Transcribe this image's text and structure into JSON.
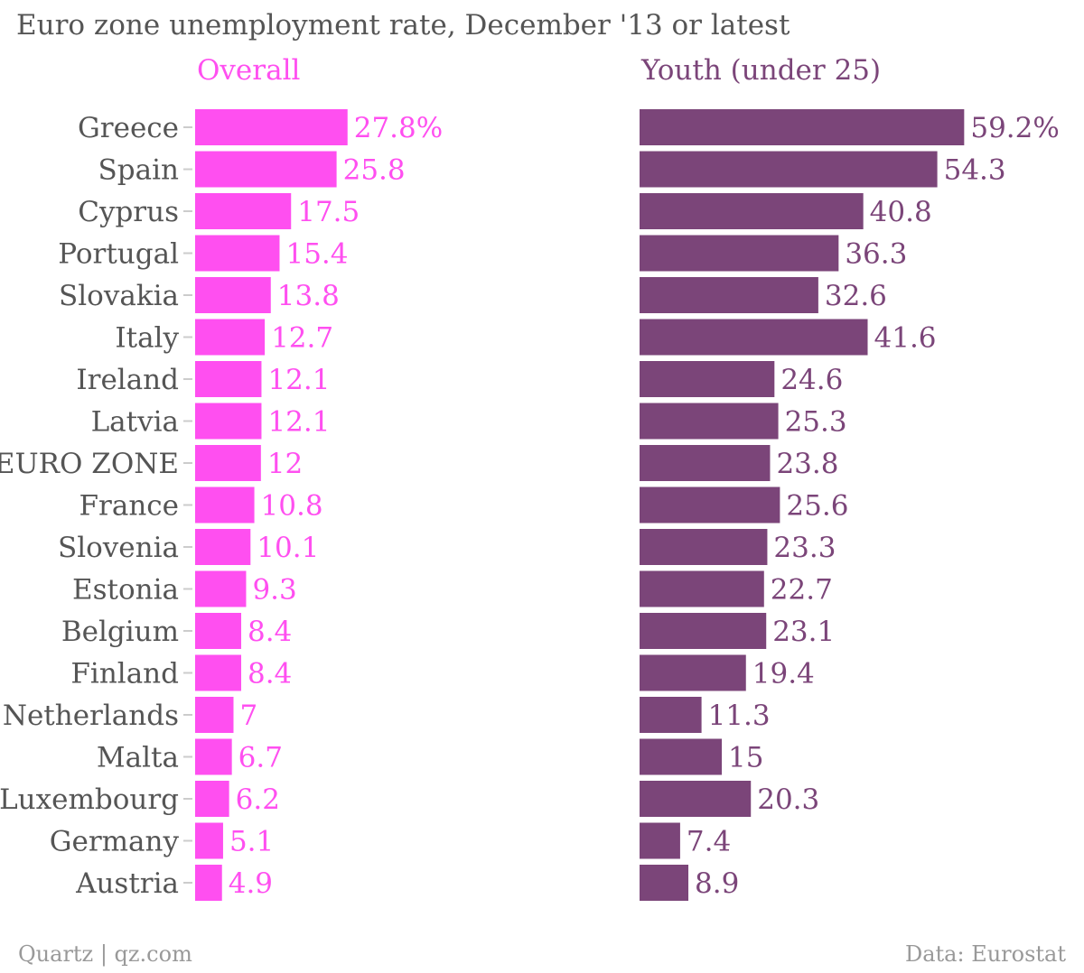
{
  "title": "Euro zone unemployment rate, December '13 or latest",
  "footer": {
    "source_left": "Quartz | qz.com",
    "source_right": "Data: Eurostat"
  },
  "colors": {
    "overall": "#ff4ff0",
    "youth": "#7b4579",
    "label": "#555555",
    "tick": "#cccccc"
  },
  "chart_data": [
    {
      "type": "bar",
      "orientation": "horizontal",
      "title": "Overall",
      "categories": [
        "Greece",
        "Spain",
        "Cyprus",
        "Portugal",
        "Slovakia",
        "Italy",
        "Ireland",
        "Latvia",
        "EURO ZONE",
        "France",
        "Slovenia",
        "Estonia",
        "Belgium",
        "Finland",
        "Netherlands",
        "Malta",
        "Luxembourg",
        "Germany",
        "Austria"
      ],
      "values": [
        27.8,
        25.8,
        17.5,
        15.4,
        13.8,
        12.7,
        12.1,
        12.1,
        12,
        10.8,
        10.1,
        9.3,
        8.4,
        8.4,
        7,
        6.7,
        6.2,
        5.1,
        4.9
      ],
      "value_labels": [
        "27.8%",
        "25.8",
        "17.5",
        "15.4",
        "13.8",
        "12.7",
        "12.1",
        "12.1",
        "12",
        "10.8",
        "10.1",
        "9.3",
        "8.4",
        "8.4",
        "7",
        "6.7",
        "6.2",
        "5.1",
        "4.9"
      ],
      "color": "#ff4ff0"
    },
    {
      "type": "bar",
      "orientation": "horizontal",
      "title": "Youth (under 25)",
      "categories": [
        "Greece",
        "Spain",
        "Cyprus",
        "Portugal",
        "Slovakia",
        "Italy",
        "Ireland",
        "Latvia",
        "EURO ZONE",
        "France",
        "Slovenia",
        "Estonia",
        "Belgium",
        "Finland",
        "Netherlands",
        "Malta",
        "Luxembourg",
        "Germany",
        "Austria"
      ],
      "values": [
        59.2,
        54.3,
        40.8,
        36.3,
        32.6,
        41.6,
        24.6,
        25.3,
        23.8,
        25.6,
        23.3,
        22.7,
        23.1,
        19.4,
        11.3,
        15,
        20.3,
        7.4,
        8.9
      ],
      "value_labels": [
        "59.2%",
        "54.3",
        "40.8",
        "36.3",
        "32.6",
        "41.6",
        "24.6",
        "25.3",
        "23.8",
        "25.6",
        "23.3",
        "22.7",
        "23.1",
        "19.4",
        "11.3",
        "15",
        "20.3",
        "7.4",
        "8.9"
      ],
      "color": "#7b4579"
    }
  ]
}
